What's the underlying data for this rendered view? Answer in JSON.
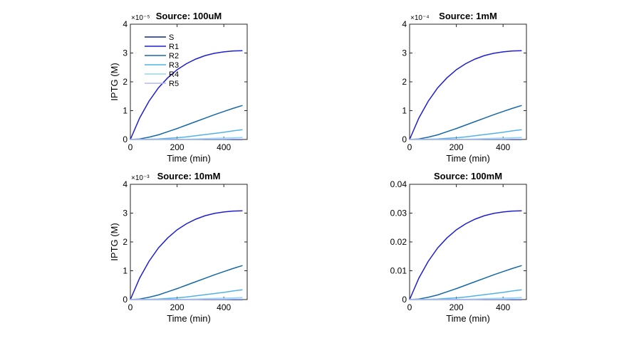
{
  "figure": {
    "xlabel": "Time (min)",
    "ylabel": "IPTG (M)",
    "legend_loc": "top-left",
    "legend_names": [
      "S",
      "R1",
      "R2",
      "R3",
      "R4",
      "R5"
    ],
    "series_colors": [
      "#0b2a8c",
      "#1f1fd1",
      "#1668a8",
      "#52b2e6",
      "#8fdaf7",
      "#b5b8ec"
    ]
  },
  "chart_data": [
    {
      "type": "line",
      "title": "Source: 100uM",
      "multiplier": "×10⁻⁵",
      "show_legend": true,
      "show_ylabel": true,
      "xlim": [
        0,
        500
      ],
      "ylim": [
        0,
        4
      ],
      "yticks": [
        0,
        1,
        2,
        3,
        4
      ],
      "ytick_labels": [
        "0",
        "1",
        "2",
        "3",
        "4"
      ],
      "xticks": [
        0,
        200,
        400
      ],
      "xtick_labels": [
        "0",
        "200",
        "400"
      ],
      "x": [
        0,
        40,
        80,
        120,
        160,
        200,
        240,
        280,
        320,
        360,
        400,
        440,
        480
      ],
      "series": [
        {
          "name": "S",
          "values": [
            0,
            0,
            0,
            0,
            0,
            0,
            0,
            0,
            0,
            0,
            0,
            0,
            0
          ]
        },
        {
          "name": "R1",
          "values": [
            0,
            0.75,
            1.33,
            1.79,
            2.14,
            2.42,
            2.63,
            2.79,
            2.91,
            2.99,
            3.04,
            3.07,
            3.08
          ]
        },
        {
          "name": "R2",
          "values": [
            0,
            0.02,
            0.08,
            0.16,
            0.27,
            0.38,
            0.5,
            0.62,
            0.74,
            0.86,
            0.97,
            1.08,
            1.18
          ]
        },
        {
          "name": "R3",
          "values": [
            0,
            0,
            0.01,
            0.02,
            0.04,
            0.06,
            0.09,
            0.13,
            0.17,
            0.21,
            0.25,
            0.3,
            0.34
          ]
        },
        {
          "name": "R4",
          "values": [
            0,
            0,
            0,
            0,
            0,
            0.01,
            0.01,
            0.02,
            0.03,
            0.04,
            0.05,
            0.06,
            0.07
          ]
        },
        {
          "name": "R5",
          "values": [
            0,
            0,
            0,
            0,
            0,
            0,
            0,
            0,
            0.01,
            0.01,
            0.01,
            0.02,
            0.02
          ]
        }
      ]
    },
    {
      "type": "line",
      "title": "Source: 1mM",
      "multiplier": "×10⁻⁴",
      "show_legend": false,
      "show_ylabel": false,
      "xlim": [
        0,
        500
      ],
      "ylim": [
        0,
        4
      ],
      "yticks": [
        0,
        1,
        2,
        3,
        4
      ],
      "ytick_labels": [
        "0",
        "1",
        "2",
        "3",
        "4"
      ],
      "xticks": [
        0,
        200,
        400
      ],
      "xtick_labels": [
        "0",
        "200",
        "400"
      ],
      "x": [
        0,
        40,
        80,
        120,
        160,
        200,
        240,
        280,
        320,
        360,
        400,
        440,
        480
      ],
      "series": [
        {
          "name": "S",
          "values": [
            0,
            0,
            0,
            0,
            0,
            0,
            0,
            0,
            0,
            0,
            0,
            0,
            0
          ]
        },
        {
          "name": "R1",
          "values": [
            0,
            0.75,
            1.33,
            1.79,
            2.14,
            2.42,
            2.63,
            2.79,
            2.91,
            2.99,
            3.04,
            3.07,
            3.08
          ]
        },
        {
          "name": "R2",
          "values": [
            0,
            0.02,
            0.08,
            0.16,
            0.27,
            0.38,
            0.5,
            0.62,
            0.74,
            0.86,
            0.97,
            1.08,
            1.18
          ]
        },
        {
          "name": "R3",
          "values": [
            0,
            0,
            0.01,
            0.02,
            0.04,
            0.06,
            0.09,
            0.13,
            0.17,
            0.21,
            0.25,
            0.3,
            0.34
          ]
        },
        {
          "name": "R4",
          "values": [
            0,
            0,
            0,
            0,
            0,
            0.01,
            0.01,
            0.02,
            0.03,
            0.04,
            0.05,
            0.06,
            0.07
          ]
        },
        {
          "name": "R5",
          "values": [
            0,
            0,
            0,
            0,
            0,
            0,
            0,
            0,
            0.01,
            0.01,
            0.01,
            0.02,
            0.02
          ]
        }
      ]
    },
    {
      "type": "line",
      "title": "Source: 10mM",
      "multiplier": "×10⁻³",
      "show_legend": false,
      "show_ylabel": true,
      "xlim": [
        0,
        500
      ],
      "ylim": [
        0,
        4
      ],
      "yticks": [
        0,
        1,
        2,
        3,
        4
      ],
      "ytick_labels": [
        "0",
        "1",
        "2",
        "3",
        "4"
      ],
      "xticks": [
        0,
        200,
        400
      ],
      "xtick_labels": [
        "0",
        "200",
        "400"
      ],
      "x": [
        0,
        40,
        80,
        120,
        160,
        200,
        240,
        280,
        320,
        360,
        400,
        440,
        480
      ],
      "series": [
        {
          "name": "S",
          "values": [
            0,
            0,
            0,
            0,
            0,
            0,
            0,
            0,
            0,
            0,
            0,
            0,
            0
          ]
        },
        {
          "name": "R1",
          "values": [
            0,
            0.75,
            1.33,
            1.79,
            2.14,
            2.42,
            2.63,
            2.79,
            2.91,
            2.99,
            3.04,
            3.07,
            3.08
          ]
        },
        {
          "name": "R2",
          "values": [
            0,
            0.02,
            0.08,
            0.16,
            0.27,
            0.38,
            0.5,
            0.62,
            0.74,
            0.86,
            0.97,
            1.08,
            1.18
          ]
        },
        {
          "name": "R3",
          "values": [
            0,
            0,
            0.01,
            0.02,
            0.04,
            0.06,
            0.09,
            0.13,
            0.17,
            0.21,
            0.25,
            0.3,
            0.34
          ]
        },
        {
          "name": "R4",
          "values": [
            0,
            0,
            0,
            0,
            0,
            0.01,
            0.01,
            0.02,
            0.03,
            0.04,
            0.05,
            0.06,
            0.07
          ]
        },
        {
          "name": "R5",
          "values": [
            0,
            0,
            0,
            0,
            0,
            0,
            0,
            0,
            0.01,
            0.01,
            0.01,
            0.02,
            0.02
          ]
        }
      ]
    },
    {
      "type": "line",
      "title": "Source: 100mM",
      "multiplier": "",
      "show_legend": false,
      "show_ylabel": false,
      "xlim": [
        0,
        500
      ],
      "ylim": [
        0,
        0.04
      ],
      "yticks": [
        0,
        0.01,
        0.02,
        0.03,
        0.04
      ],
      "ytick_labels": [
        "0",
        "0.01",
        "0.02",
        "0.03",
        "0.04"
      ],
      "xticks": [
        0,
        200,
        400
      ],
      "xtick_labels": [
        "0",
        "200",
        "400"
      ],
      "x": [
        0,
        40,
        80,
        120,
        160,
        200,
        240,
        280,
        320,
        360,
        400,
        440,
        480
      ],
      "series": [
        {
          "name": "S",
          "values": [
            0,
            0,
            0,
            0,
            0,
            0,
            0,
            0,
            0,
            0,
            0,
            0,
            0
          ]
        },
        {
          "name": "R1",
          "values": [
            0,
            0.0075,
            0.0133,
            0.0179,
            0.0214,
            0.0242,
            0.0263,
            0.0279,
            0.0291,
            0.0299,
            0.0304,
            0.0307,
            0.0308
          ]
        },
        {
          "name": "R2",
          "values": [
            0,
            0.0002,
            0.0008,
            0.0016,
            0.0027,
            0.0038,
            0.005,
            0.0062,
            0.0074,
            0.0086,
            0.0097,
            0.0108,
            0.0118
          ]
        },
        {
          "name": "R3",
          "values": [
            0,
            0,
            0.0001,
            0.0002,
            0.0004,
            0.0006,
            0.0009,
            0.0013,
            0.0017,
            0.0021,
            0.0025,
            0.003,
            0.0034
          ]
        },
        {
          "name": "R4",
          "values": [
            0,
            0,
            0,
            0,
            0,
            0.0001,
            0.0001,
            0.0002,
            0.0003,
            0.0004,
            0.0005,
            0.0006,
            0.0007
          ]
        },
        {
          "name": "R5",
          "values": [
            0,
            0,
            0,
            0,
            0,
            0,
            0,
            0,
            0.0001,
            0.0001,
            0.0001,
            0.0002,
            0.0002
          ]
        }
      ]
    }
  ]
}
